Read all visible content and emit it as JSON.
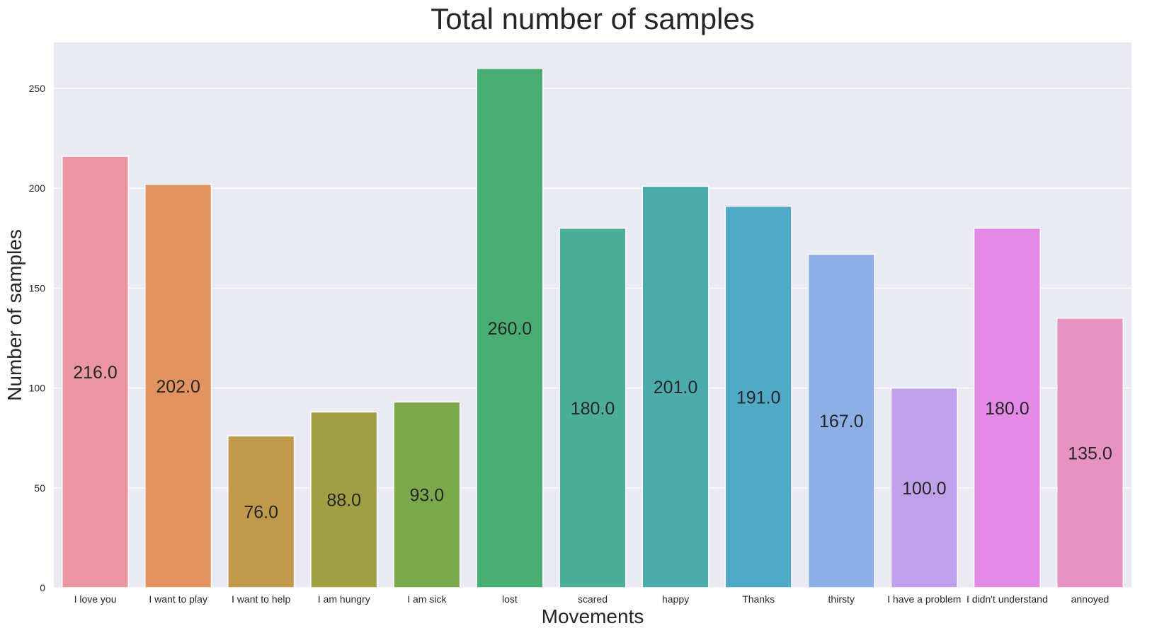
{
  "chart_data": {
    "type": "bar",
    "title": "Total number of samples",
    "xlabel": "Movements",
    "ylabel": "Number of samples",
    "categories": [
      "I love you",
      "I want to play",
      "I want to help",
      "I am hungry",
      "I am sick",
      "lost",
      "scared",
      "happy",
      "Thanks",
      "thirsty",
      "I have a problem",
      "I didn't understand",
      "annoyed"
    ],
    "values": [
      216,
      202,
      76,
      88,
      93,
      260,
      180,
      201,
      191,
      167,
      100,
      180,
      135
    ],
    "data_labels": [
      "216.0",
      "202.0",
      "76.0",
      "88.0",
      "93.0",
      "260.0",
      "180.0",
      "201.0",
      "191.0",
      "167.0",
      "100.0",
      "180.0",
      "135.0"
    ],
    "ylim": [
      0,
      273
    ],
    "yticks": [
      0,
      50,
      100,
      150,
      200,
      250
    ],
    "grid": true,
    "colors": [
      "#ea96a3",
      "#e2935f",
      "#c09a4a",
      "#a09f44",
      "#7ba84a",
      "#48ae74",
      "#4aae99",
      "#4cabab",
      "#50aac7",
      "#8eaee6",
      "#bea1ea",
      "#e389e6",
      "#e793c2"
    ],
    "background": "#eaeaf2"
  }
}
